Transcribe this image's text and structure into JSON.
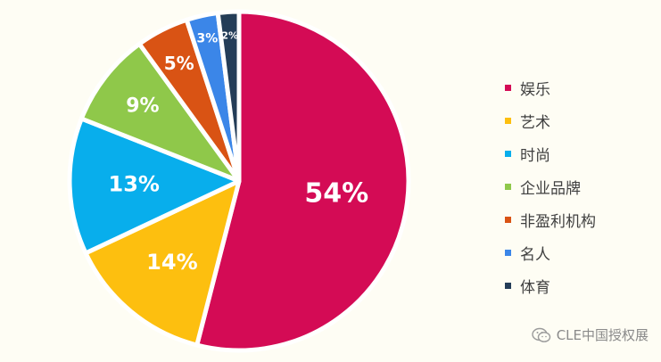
{
  "chart_data": {
    "type": "pie",
    "title": "",
    "categories": [
      "娱乐",
      "艺术",
      "时尚",
      "企业品牌",
      "非盈利机构",
      "名人",
      "体育"
    ],
    "values": [
      54,
      14,
      13,
      9,
      5,
      3,
      2
    ],
    "labels": [
      "54%",
      "14%",
      "13%",
      "9%",
      "5%",
      "3%",
      "2%"
    ],
    "colors": [
      "#d40b55",
      "#fdbf0f",
      "#08aeec",
      "#8fc84a",
      "#d95314",
      "#3b86e8",
      "#243d58"
    ],
    "legend_position": "right"
  },
  "watermark": {
    "text": "CLE中国授权展",
    "icon": "wechat-icon"
  }
}
